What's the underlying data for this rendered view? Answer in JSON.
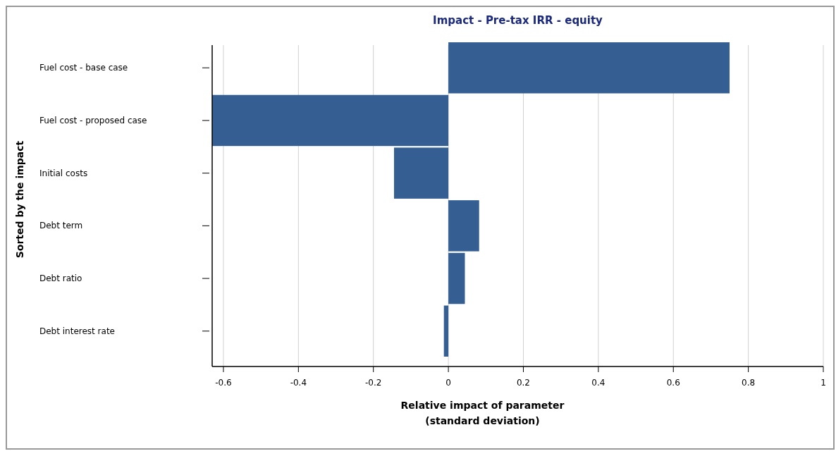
{
  "chart_data": {
    "type": "bar",
    "orientation": "horizontal",
    "title": "Impact - Pre-tax IRR - equity",
    "xlabel": "Relative impact of parameter\n(standard deviation)",
    "ylabel": "Sorted by the impact",
    "categories": [
      "Fuel cost - base case",
      "Fuel cost - proposed case",
      "Initial costs",
      "Debt term",
      "Debt ratio",
      "Debt interest rate"
    ],
    "values": [
      0.75,
      -0.63,
      -0.145,
      0.082,
      0.044,
      -0.012
    ],
    "color": "#355f92",
    "xlim": [
      -0.63,
      1
    ],
    "xticks": [
      -0.6,
      -0.4,
      -0.2,
      0,
      0.2,
      0.4,
      0.6,
      0.8,
      1
    ],
    "grid": "x"
  }
}
